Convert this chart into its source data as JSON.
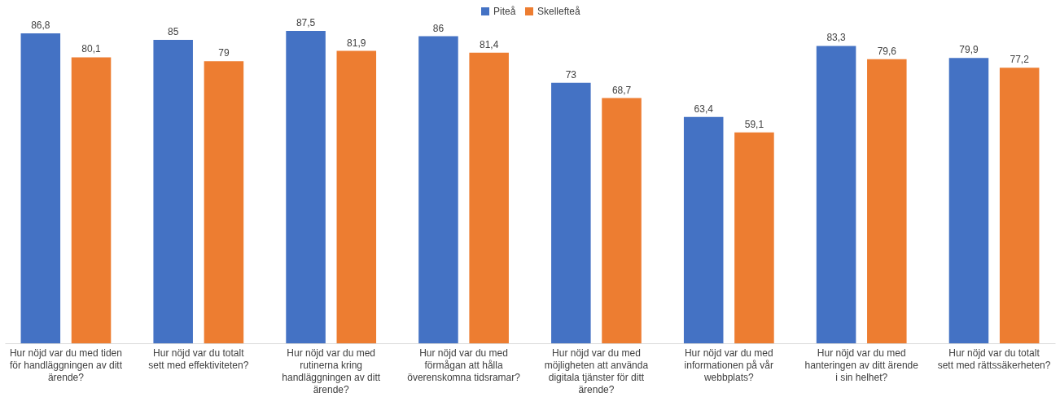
{
  "chart_data": {
    "type": "bar",
    "categories": [
      "Hur nöjd var du med tiden för handläggningen av ditt ärende?",
      "Hur nöjd var du totalt sett med effektiviteten?",
      "Hur nöjd var du med rutinerna kring handläggningen av ditt ärende?",
      "Hur nöjd var du med förmågan att hålla överenskomna tidsramar?",
      "Hur nöjd var du med möjligheten att använda digitala tjänster för ditt ärende?",
      "Hur nöjd var du med informationen på vår webbplats?",
      "Hur nöjd var du med hanteringen av ditt ärende i sin helhet?",
      "Hur nöjd var du totalt sett med rättssäkerheten?"
    ],
    "series": [
      {
        "name": "Piteå",
        "color": "#4472c4",
        "values": [
          86.8,
          85,
          87.5,
          86,
          73,
          63.4,
          83.3,
          79.9
        ],
        "value_labels": [
          "86,8",
          "85",
          "87,5",
          "86",
          "73",
          "63,4",
          "83,3",
          "79,9"
        ]
      },
      {
        "name": "Skellefteå",
        "color": "#ed7d31",
        "values": [
          80.1,
          79,
          81.9,
          81.4,
          68.7,
          59.1,
          79.6,
          77.2
        ],
        "value_labels": [
          "80,1",
          "79",
          "81,9",
          "81,4",
          "68,7",
          "59,1",
          "79,6",
          "77,2"
        ]
      }
    ],
    "legend": "top"
  }
}
